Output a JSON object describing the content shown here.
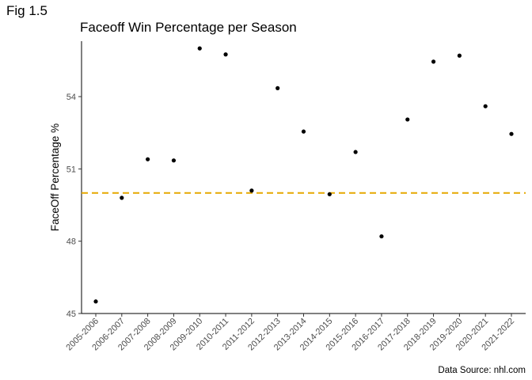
{
  "figure_label": "Fig 1.5",
  "chart_data": {
    "type": "scatter",
    "title": "Faceoff Win Percentage per Season",
    "xlabel": "",
    "ylabel": "FaceOff Percentage %",
    "caption": "Data Source: nhl.com",
    "categories": [
      "2005-2006",
      "2006-2007",
      "2007-2008",
      "2008-2009",
      "2009-2010",
      "2010-2011",
      "2011-2012",
      "2012-2013",
      "2013-2014",
      "2014-2015",
      "2015-2016",
      "2016-2017",
      "2017-2018",
      "2018-2019",
      "2019-2020",
      "2020-2021",
      "2021-2022"
    ],
    "values": [
      45.5,
      49.8,
      51.4,
      51.35,
      56.0,
      55.75,
      50.1,
      54.35,
      52.55,
      49.95,
      51.7,
      48.2,
      53.05,
      55.45,
      55.7,
      53.6,
      52.45
    ],
    "yticks": [
      45,
      48,
      51,
      54
    ],
    "ylim": [
      45,
      56.3
    ],
    "reference_line": {
      "y": 50.0,
      "style": "dashed",
      "color": "#E6A800"
    },
    "point_color": "#000000",
    "grid": false
  }
}
